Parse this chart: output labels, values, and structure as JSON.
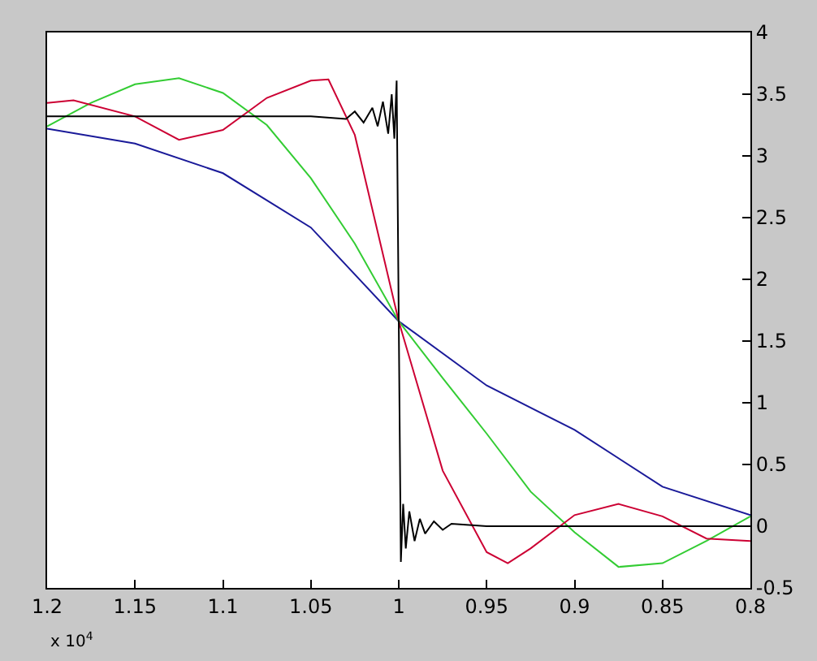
{
  "chart_data": {
    "type": "line",
    "marker": "none",
    "line_style": "solid",
    "xlim": [
      1.2,
      0.8
    ],
    "xticks": [
      1.2,
      1.15,
      1.1,
      1.05,
      1,
      0.95,
      0.9,
      0.85,
      0.8
    ],
    "ylim": [
      -0.5,
      4
    ],
    "yticks": [
      -0.5,
      0,
      0.5,
      1,
      1.5,
      2,
      2.5,
      3,
      3.5,
      4
    ],
    "annotations": [
      "x 10$^{4}$"
    ],
    "series": [
      {
        "color": "#1a1a99",
        "x": [
          1.2,
          1.15,
          1.1,
          1.05,
          1.0,
          0.95,
          0.9,
          0.85,
          0.8
        ],
        "values": [
          3.22,
          3.1,
          2.86,
          2.42,
          1.66,
          1.14,
          0.78,
          0.32,
          0.09
        ]
      },
      {
        "color": "#33cc33",
        "x": [
          1.2,
          1.175,
          1.15,
          1.125,
          1.1,
          1.075,
          1.05,
          1.025,
          1.0,
          0.975,
          0.95,
          0.925,
          0.9,
          0.875,
          0.85,
          0.825,
          0.8
        ],
        "values": [
          3.24,
          3.43,
          3.58,
          3.63,
          3.51,
          3.25,
          2.82,
          2.29,
          1.66,
          1.2,
          0.75,
          0.28,
          -0.05,
          -0.33,
          -0.3,
          -0.12,
          0.08
        ]
      },
      {
        "color": "#cc0033",
        "x": [
          1.2,
          1.185,
          1.15,
          1.125,
          1.1,
          1.075,
          1.05,
          1.04,
          1.025,
          1.0,
          0.975,
          0.95,
          0.938,
          0.925,
          0.9,
          0.875,
          0.85,
          0.825,
          0.8
        ],
        "values": [
          3.43,
          3.45,
          3.32,
          3.13,
          3.21,
          3.47,
          3.61,
          3.62,
          3.17,
          1.66,
          0.45,
          -0.21,
          -0.3,
          -0.18,
          0.09,
          0.18,
          0.08,
          -0.1,
          -0.12
        ]
      },
      {
        "color": "#000000",
        "x": [
          1.2,
          1.05,
          1.03,
          1.025,
          1.02,
          1.015,
          1.012,
          1.009,
          1.006,
          1.004,
          1.0025,
          1.0012,
          1.0,
          0.9988,
          0.9975,
          0.996,
          0.994,
          0.991,
          0.988,
          0.985,
          0.98,
          0.975,
          0.97,
          0.95,
          0.8
        ],
        "values": [
          3.32,
          3.32,
          3.3,
          3.36,
          3.27,
          3.39,
          3.24,
          3.44,
          3.18,
          3.5,
          3.14,
          3.61,
          1.66,
          -0.29,
          0.18,
          -0.18,
          0.12,
          -0.12,
          0.06,
          -0.06,
          0.04,
          -0.03,
          0.02,
          0,
          0
        ]
      }
    ]
  }
}
